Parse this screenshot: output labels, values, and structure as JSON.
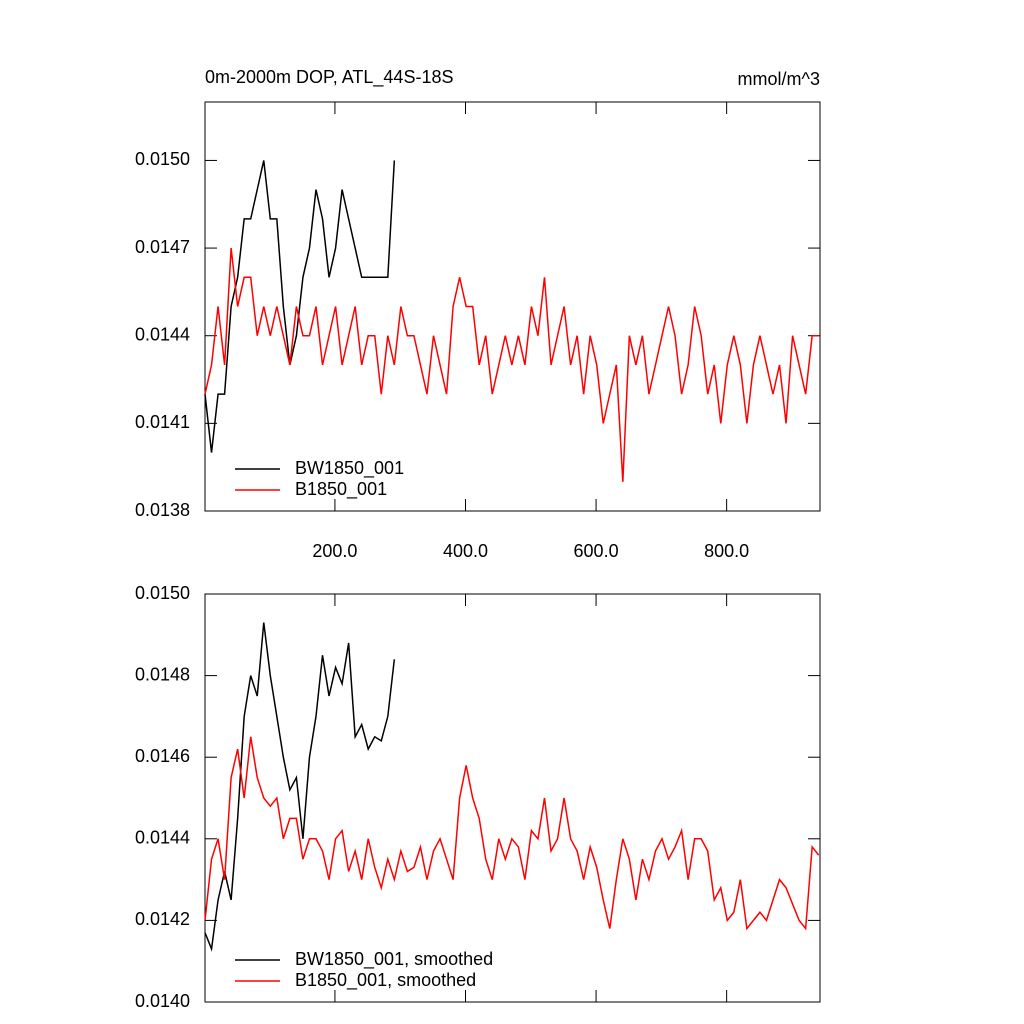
{
  "chart_data": [
    {
      "type": "line",
      "title": "0m-2000m DOP, ATL_44S-18S",
      "subtitle": "mmol/m^3",
      "x": [
        1,
        11,
        21,
        31,
        41,
        51,
        61,
        71,
        81,
        91,
        101,
        111,
        121,
        131,
        141,
        151,
        161,
        171,
        181,
        191,
        201,
        211,
        221,
        231,
        241,
        251,
        261,
        271,
        281,
        291,
        301,
        311,
        321,
        331,
        341,
        351,
        361,
        371,
        381,
        391,
        401,
        411,
        421,
        431,
        441,
        451,
        461,
        471,
        481,
        491,
        501,
        511,
        521,
        531,
        541,
        551,
        561,
        571,
        581,
        591,
        601,
        611,
        621,
        631,
        641,
        651,
        661,
        671,
        681,
        691,
        701,
        711,
        721,
        731,
        741,
        751,
        761,
        771,
        781,
        791,
        801,
        811,
        821,
        831,
        841,
        851,
        861,
        871,
        881,
        891,
        901,
        911,
        921,
        931,
        941
      ],
      "series": [
        {
          "name": "BW1850_001",
          "color": "#000000",
          "values": [
            0.0142,
            0.014,
            0.0142,
            0.0142,
            0.0145,
            0.0146,
            0.0148,
            0.0148,
            0.0149,
            0.015,
            0.0148,
            0.0148,
            0.0145,
            0.0143,
            0.0144,
            0.0146,
            0.0147,
            0.0149,
            0.0148,
            0.0146,
            0.0147,
            0.0149,
            0.0148,
            0.0147,
            0.0146,
            0.0146,
            0.0146,
            0.0146,
            0.0146,
            0.015,
            null,
            null,
            null,
            null,
            null,
            null,
            null,
            null,
            null,
            null,
            null,
            null,
            null,
            null,
            null,
            null,
            null,
            null,
            null,
            null,
            null,
            null,
            null,
            null,
            null,
            null,
            null,
            null,
            null,
            null,
            null,
            null,
            null,
            null,
            null,
            null,
            null,
            null,
            null,
            null,
            null,
            null,
            null,
            null,
            null,
            null,
            null,
            null,
            null,
            null,
            null,
            null,
            null,
            null,
            null,
            null,
            null,
            null,
            null,
            null,
            null,
            null,
            null,
            null,
            null
          ]
        },
        {
          "name": "B1850_001",
          "color": "#ff0000",
          "values": [
            0.0142,
            0.0143,
            0.0145,
            0.0143,
            0.0147,
            0.0145,
            0.0146,
            0.0146,
            0.0144,
            0.0145,
            0.0144,
            0.0145,
            0.0144,
            0.0143,
            0.0145,
            0.0144,
            0.0144,
            0.0145,
            0.0143,
            0.0144,
            0.0145,
            0.0143,
            0.0144,
            0.0145,
            0.0143,
            0.0144,
            0.0144,
            0.0142,
            0.0144,
            0.0143,
            0.0145,
            0.0144,
            0.0144,
            0.0143,
            0.0142,
            0.0144,
            0.0143,
            0.0142,
            0.0145,
            0.0146,
            0.0145,
            0.0145,
            0.0143,
            0.0144,
            0.0142,
            0.0143,
            0.0144,
            0.0143,
            0.0144,
            0.0143,
            0.0145,
            0.0144,
            0.0146,
            0.0143,
            0.0144,
            0.0145,
            0.0143,
            0.0144,
            0.0142,
            0.0144,
            0.0143,
            0.0141,
            0.0142,
            0.0143,
            0.0139,
            0.0144,
            0.0143,
            0.0144,
            0.0142,
            0.0143,
            0.0144,
            0.0145,
            0.0144,
            0.0142,
            0.0143,
            0.0145,
            0.0144,
            0.0142,
            0.0143,
            0.0141,
            0.0143,
            0.0144,
            0.0143,
            0.0141,
            0.0143,
            0.0144,
            0.0143,
            0.0142,
            0.0143,
            0.0141,
            0.0144,
            0.0143,
            0.0142,
            0.0144,
            0.0144
          ]
        }
      ],
      "xlim": [
        1,
        943
      ],
      "xticks": [
        {
          "value": 200,
          "label": "200.0"
        },
        {
          "value": 400,
          "label": "400.0"
        },
        {
          "value": 600,
          "label": "600.0"
        },
        {
          "value": 800,
          "label": "800.0"
        }
      ],
      "ylim": [
        0.0138,
        0.0152
      ],
      "yticks": [
        0.0138,
        0.0141,
        0.0144,
        0.0147,
        {
          "value": 0.015,
          "label": "0.0150"
        }
      ],
      "legend": "lower left"
    },
    {
      "type": "line",
      "x": [
        1,
        11,
        21,
        31,
        41,
        51,
        61,
        71,
        81,
        91,
        101,
        111,
        121,
        131,
        141,
        151,
        161,
        171,
        181,
        191,
        201,
        211,
        221,
        231,
        241,
        251,
        261,
        271,
        281,
        291,
        301,
        311,
        321,
        331,
        341,
        351,
        361,
        371,
        381,
        391,
        401,
        411,
        421,
        431,
        441,
        451,
        461,
        471,
        481,
        491,
        501,
        511,
        521,
        531,
        541,
        551,
        561,
        571,
        581,
        591,
        601,
        611,
        621,
        631,
        641,
        651,
        661,
        671,
        681,
        691,
        701,
        711,
        721,
        731,
        741,
        751,
        761,
        771,
        781,
        791,
        801,
        811,
        821,
        831,
        841,
        851,
        861,
        871,
        881,
        891,
        901,
        911,
        921,
        931,
        941
      ],
      "series": [
        {
          "name": "BW1850_001, smoothed",
          "color": "#000000",
          "values": [
            0.01417,
            0.01413,
            0.01425,
            0.01432,
            0.01425,
            0.01445,
            0.0147,
            0.0148,
            0.01475,
            0.01493,
            0.0148,
            0.0147,
            0.0146,
            0.01452,
            0.01455,
            0.0144,
            0.0146,
            0.0147,
            0.01485,
            0.01475,
            0.01482,
            0.01478,
            0.01488,
            0.01465,
            0.01468,
            0.01462,
            0.01465,
            0.01464,
            0.0147,
            0.01484,
            null,
            null,
            null,
            null,
            null,
            null,
            null,
            null,
            null,
            null,
            null,
            null,
            null,
            null,
            null,
            null,
            null,
            null,
            null,
            null,
            null,
            null,
            null,
            null,
            null,
            null,
            null,
            null,
            null,
            null,
            null,
            null,
            null,
            null,
            null,
            null,
            null,
            null,
            null,
            null,
            null,
            null,
            null,
            null,
            null,
            null,
            null,
            null,
            null,
            null,
            null,
            null,
            null,
            null,
            null,
            null,
            null,
            null,
            null,
            null,
            null,
            null,
            null,
            null,
            null
          ]
        },
        {
          "name": "B1850_001, smoothed",
          "color": "#ff0000",
          "values": [
            0.0142,
            0.01435,
            0.0144,
            0.0143,
            0.01455,
            0.01462,
            0.0145,
            0.01465,
            0.01455,
            0.0145,
            0.01448,
            0.0145,
            0.0144,
            0.01445,
            0.01445,
            0.01435,
            0.0144,
            0.0144,
            0.01437,
            0.0143,
            0.0144,
            0.01442,
            0.01432,
            0.01437,
            0.0143,
            0.0144,
            0.01433,
            0.01428,
            0.01435,
            0.0143,
            0.01437,
            0.01432,
            0.01433,
            0.01438,
            0.0143,
            0.01437,
            0.0144,
            0.01435,
            0.0143,
            0.0145,
            0.01458,
            0.0145,
            0.01445,
            0.01435,
            0.0143,
            0.0144,
            0.01435,
            0.0144,
            0.01438,
            0.0143,
            0.01442,
            0.0144,
            0.0145,
            0.01437,
            0.0144,
            0.0145,
            0.0144,
            0.01437,
            0.0143,
            0.01438,
            0.01433,
            0.01425,
            0.01418,
            0.0143,
            0.0144,
            0.01435,
            0.01425,
            0.01435,
            0.0143,
            0.01437,
            0.0144,
            0.01435,
            0.01438,
            0.01442,
            0.0143,
            0.0144,
            0.0144,
            0.01437,
            0.01425,
            0.01428,
            0.0142,
            0.01422,
            0.0143,
            0.01418,
            0.0142,
            0.01422,
            0.0142,
            0.01425,
            0.0143,
            0.01428,
            0.01424,
            0.0142,
            0.01418,
            0.01438,
            0.01436
          ]
        }
      ],
      "xlim": [
        1,
        943
      ],
      "xticks": [
        200,
        400,
        600,
        800
      ],
      "ylim": [
        0.014,
        0.015
      ],
      "yticks": [
        {
          "value": 0.014,
          "label": "0.0140"
        },
        0.0142,
        0.0144,
        0.0146,
        0.0148,
        {
          "value": 0.015,
          "label": "0.0150"
        }
      ],
      "legend": "lower left"
    }
  ]
}
